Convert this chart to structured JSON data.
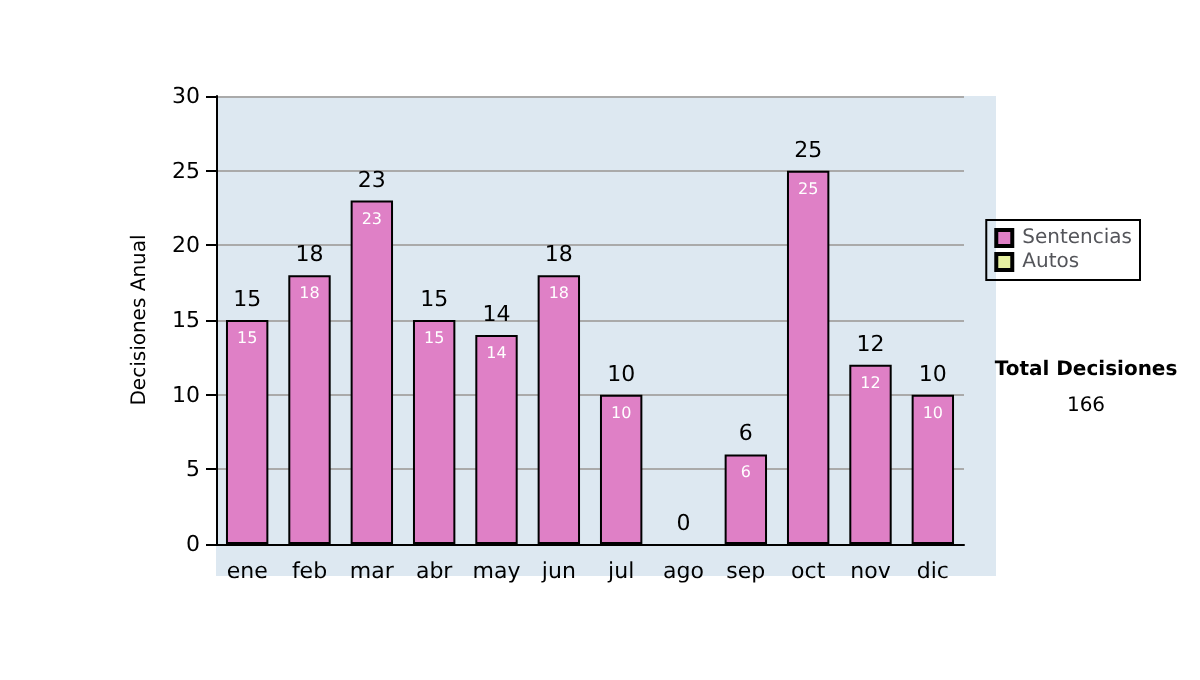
{
  "chart_data": {
    "type": "bar",
    "stacked": true,
    "ylabel": "Decisiones Anual",
    "categories": [
      "ene",
      "feb",
      "mar",
      "abr",
      "may",
      "jun",
      "jul",
      "ago",
      "sep",
      "oct",
      "nov",
      "dic"
    ],
    "series": [
      {
        "name": "Sentencias",
        "color": "#df80c6",
        "values": [
          15,
          18,
          23,
          15,
          14,
          18,
          10,
          0,
          6,
          25,
          12,
          10
        ],
        "value_labels": [
          "15",
          "18",
          "23",
          "15",
          "14",
          "18",
          "10",
          null,
          "6",
          "25",
          "12",
          "10"
        ]
      },
      {
        "name": "Autos",
        "color": "#e6f0a0",
        "values": [
          0,
          0,
          0,
          0,
          0,
          0,
          0,
          0,
          0,
          0,
          0,
          0
        ]
      }
    ],
    "totals": [
      "15",
      "18",
      "23",
      "15",
      "14",
      "18",
      "10",
      "0",
      "6",
      "25",
      "12",
      "10"
    ],
    "ylim": [
      0,
      30
    ],
    "yticks": [
      0,
      5,
      10,
      15,
      20,
      25,
      30
    ],
    "grid": "y",
    "legend": "right",
    "annotations": [
      "Total Decisiones",
      "166"
    ]
  }
}
